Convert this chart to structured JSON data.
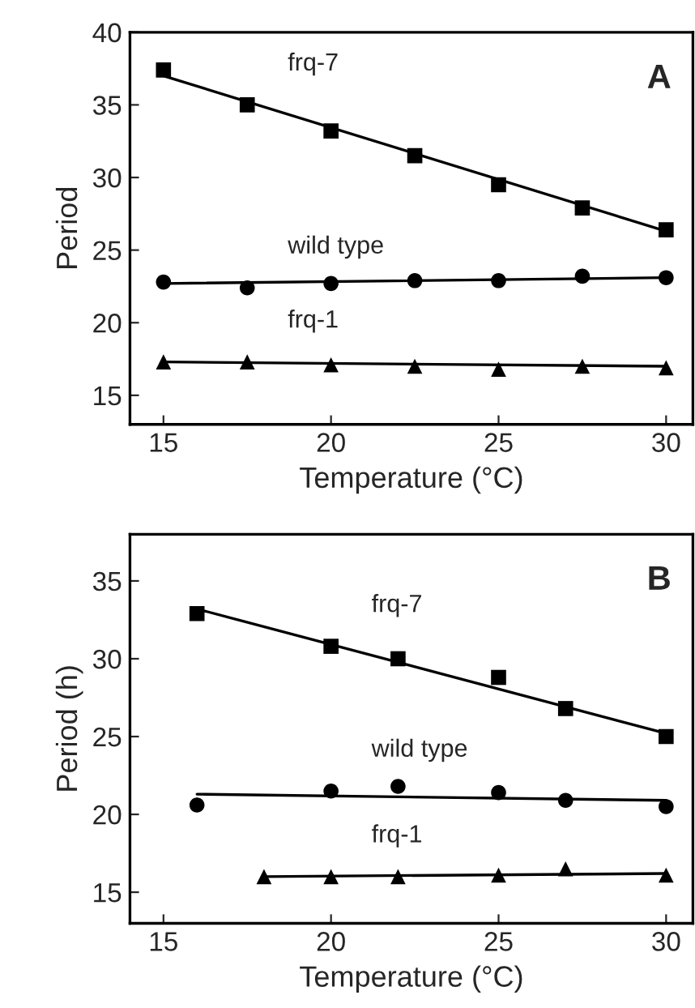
{
  "chart_data": [
    {
      "type": "scatter",
      "xlabel": "Temperature (°C)",
      "ylabel": "Period",
      "xlim": [
        14,
        30.8
      ],
      "ylim": [
        13,
        40
      ],
      "xticks": [
        15,
        20,
        25,
        30
      ],
      "yticks": [
        15,
        20,
        25,
        30,
        35,
        40
      ],
      "grid": false,
      "legend": false,
      "annotations": [
        "A"
      ],
      "series": [
        {
          "name": "frq-7",
          "marker": "square",
          "color": "#000000",
          "x": [
            15,
            17.5,
            20,
            22.5,
            25,
            27.5,
            30
          ],
          "values": [
            37.4,
            35.0,
            33.2,
            31.5,
            29.5,
            27.9,
            26.4
          ]
        },
        {
          "name": "wild type",
          "marker": "circle",
          "color": "#000000",
          "x": [
            15,
            17.5,
            20,
            22.5,
            25,
            27.5,
            30
          ],
          "values": [
            22.8,
            22.4,
            22.7,
            22.9,
            22.9,
            23.2,
            23.1
          ]
        },
        {
          "name": "frq-1",
          "marker": "triangle",
          "color": "#000000",
          "x": [
            15,
            17.5,
            20,
            22.5,
            25,
            27.5,
            30
          ],
          "values": [
            17.3,
            17.3,
            17.1,
            17.0,
            16.8,
            17.0,
            16.9
          ]
        },
        {
          "type": "line",
          "marker": "none",
          "color": "#000000",
          "x": [
            15,
            30
          ],
          "values": [
            37.0,
            26.3
          ]
        },
        {
          "type": "line",
          "marker": "none",
          "color": "#000000",
          "x": [
            15,
            30
          ],
          "values": [
            22.7,
            23.1
          ]
        },
        {
          "type": "line",
          "marker": "none",
          "color": "#000000",
          "x": [
            15,
            30
          ],
          "values": [
            17.3,
            17.0
          ]
        }
      ]
    },
    {
      "type": "scatter",
      "xlabel": "Temperature (°C)",
      "ylabel": "Period (h)",
      "xlim": [
        14,
        30.8
      ],
      "ylim": [
        13,
        38
      ],
      "xticks": [
        15,
        20,
        25,
        30
      ],
      "yticks": [
        15,
        20,
        25,
        30,
        35
      ],
      "grid": false,
      "legend": false,
      "annotations": [
        "B"
      ],
      "series": [
        {
          "name": "frq-7",
          "marker": "square",
          "color": "#000000",
          "x": [
            16,
            20,
            22,
            25,
            27,
            30
          ],
          "values": [
            32.9,
            30.8,
            30.0,
            28.8,
            26.8,
            25.0
          ]
        },
        {
          "name": "wild type",
          "marker": "circle",
          "color": "#000000",
          "x": [
            16,
            20,
            22,
            25,
            27,
            30
          ],
          "values": [
            20.6,
            21.5,
            21.8,
            21.4,
            20.9,
            20.5
          ]
        },
        {
          "name": "frq-1",
          "marker": "triangle",
          "color": "#000000",
          "x": [
            18,
            20,
            22,
            25,
            27,
            30
          ],
          "values": [
            16.0,
            16.0,
            16.0,
            16.1,
            16.5,
            16.1
          ]
        },
        {
          "type": "line",
          "marker": "none",
          "color": "#000000",
          "x": [
            16,
            30
          ],
          "values": [
            33.2,
            25.2
          ]
        },
        {
          "type": "line",
          "marker": "none",
          "color": "#000000",
          "x": [
            16,
            30
          ],
          "values": [
            21.3,
            20.9
          ]
        },
        {
          "type": "line",
          "marker": "none",
          "color": "#000000",
          "x": [
            18,
            30
          ],
          "values": [
            16.0,
            16.2
          ]
        }
      ]
    }
  ]
}
